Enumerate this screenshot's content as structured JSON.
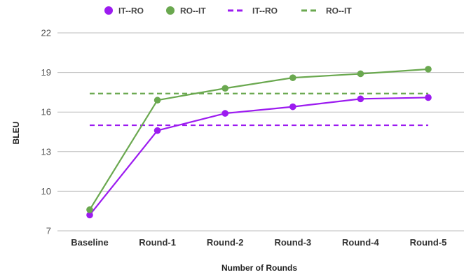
{
  "chart_data": {
    "type": "line",
    "title": "",
    "xlabel": "Number of Rounds",
    "ylabel": "BLEU",
    "categories": [
      "Baseline",
      "Round-1",
      "Round-2",
      "Round-3",
      "Round-4",
      "Round-5"
    ],
    "yticks": [
      7,
      10,
      13,
      16,
      19,
      22
    ],
    "ylim": [
      7,
      22
    ],
    "grid": true,
    "legend_position": "top",
    "series": [
      {
        "name": "IT--RO",
        "kind": "line-markers",
        "color": "#9c1bf0",
        "values": [
          8.2,
          14.6,
          15.9,
          16.4,
          17.0,
          17.1
        ]
      },
      {
        "name": "RO--IT",
        "kind": "line-markers",
        "color": "#6aa84f",
        "values": [
          8.6,
          16.9,
          17.8,
          18.6,
          18.9,
          19.25
        ]
      },
      {
        "name": "IT--RO",
        "kind": "dashed-reference",
        "color": "#9c1bf0",
        "value": 15.0
      },
      {
        "name": "RO--IT",
        "kind": "dashed-reference",
        "color": "#6aa84f",
        "value": 17.4
      }
    ]
  }
}
